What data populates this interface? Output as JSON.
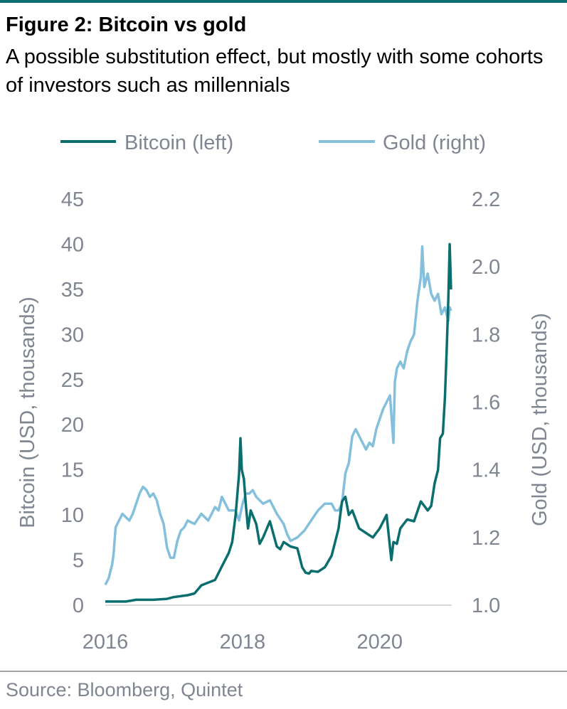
{
  "header": {
    "title": "Figure 2: Bitcoin vs gold",
    "subtitle": "A possible substitution effect, but mostly with some cohorts of investors such as millennials"
  },
  "footer": {
    "source": "Source: Bloomberg, Quintet"
  },
  "colors": {
    "bitcoin": "#0b6e6e",
    "gold": "#84bfdc",
    "axis_text": "#7f8691",
    "rule": "#0b6e6e",
    "baseline": "#d9d9d9"
  },
  "chart_data": {
    "type": "line",
    "legend": "top",
    "grid": false,
    "xlim": [
      2016.0,
      2021.05
    ],
    "x_ticks": [
      2016,
      2018,
      2020
    ],
    "x_tick_labels": [
      "2016",
      "2018",
      "2020"
    ],
    "y_left": {
      "label": "Bitcoin (USD, thousands)",
      "lim": [
        0,
        45
      ],
      "ticks": [
        0,
        5,
        10,
        15,
        20,
        25,
        30,
        35,
        40,
        45
      ],
      "tick_labels": [
        "0",
        "5",
        "10",
        "15",
        "20",
        "25",
        "30",
        "35",
        "40",
        "45"
      ]
    },
    "y_right": {
      "label": "Gold (USD, thousands)",
      "lim": [
        1.0,
        2.2
      ],
      "ticks": [
        1.0,
        1.2,
        1.4,
        1.6,
        1.8,
        2.0,
        2.2
      ],
      "tick_labels": [
        "1.0",
        "1.2",
        "1.4",
        "1.6",
        "1.8",
        "2.0",
        "2.2"
      ]
    },
    "series": [
      {
        "name": "Bitcoin (left)",
        "axis": "left",
        "x": [
          2016.0,
          2016.3,
          2016.45,
          2016.55,
          2016.7,
          2016.9,
          2017.0,
          2017.1,
          2017.2,
          2017.3,
          2017.4,
          2017.5,
          2017.6,
          2017.7,
          2017.8,
          2017.85,
          2017.9,
          2017.95,
          2017.97,
          2017.99,
          2018.02,
          2018.05,
          2018.08,
          2018.12,
          2018.2,
          2018.25,
          2018.3,
          2018.4,
          2018.5,
          2018.55,
          2018.6,
          2018.7,
          2018.8,
          2018.87,
          2018.92,
          2018.97,
          2019.0,
          2019.1,
          2019.2,
          2019.3,
          2019.4,
          2019.45,
          2019.5,
          2019.55,
          2019.6,
          2019.7,
          2019.8,
          2019.9,
          2020.0,
          2020.1,
          2020.17,
          2020.2,
          2020.25,
          2020.3,
          2020.4,
          2020.5,
          2020.6,
          2020.65,
          2020.7,
          2020.75,
          2020.8,
          2020.85,
          2020.88,
          2020.92,
          2020.95,
          2020.98,
          2021.0,
          2021.02,
          2021.04
        ],
        "values": [
          0.4,
          0.4,
          0.6,
          0.6,
          0.6,
          0.7,
          0.9,
          1.0,
          1.1,
          1.3,
          2.2,
          2.5,
          2.8,
          4.3,
          5.8,
          7.0,
          10.0,
          14.5,
          18.5,
          15.0,
          14.0,
          11.0,
          8.5,
          10.5,
          9.0,
          6.8,
          7.5,
          9.3,
          6.5,
          6.2,
          7.0,
          6.5,
          6.3,
          4.2,
          3.6,
          3.5,
          3.8,
          3.7,
          4.2,
          5.5,
          8.5,
          11.5,
          12.0,
          10.0,
          10.5,
          8.5,
          8.0,
          7.5,
          8.5,
          10.0,
          5.0,
          7.0,
          6.8,
          8.5,
          9.5,
          9.3,
          11.5,
          11.0,
          10.5,
          11.0,
          13.5,
          15.0,
          18.5,
          19.0,
          23.0,
          29.0,
          34.0,
          40.0,
          35.0
        ]
      },
      {
        "name": "Gold (right)",
        "axis": "right",
        "x": [
          2016.0,
          2016.05,
          2016.1,
          2016.12,
          2016.15,
          2016.2,
          2016.25,
          2016.3,
          2016.35,
          2016.4,
          2016.45,
          2016.5,
          2016.55,
          2016.6,
          2016.65,
          2016.7,
          2016.75,
          2016.8,
          2016.85,
          2016.9,
          2016.95,
          2017.0,
          2017.05,
          2017.1,
          2017.15,
          2017.2,
          2017.3,
          2017.4,
          2017.5,
          2017.6,
          2017.65,
          2017.7,
          2017.8,
          2017.9,
          2017.95,
          2018.0,
          2018.05,
          2018.1,
          2018.15,
          2018.2,
          2018.3,
          2018.4,
          2018.5,
          2018.6,
          2018.65,
          2018.7,
          2018.8,
          2018.9,
          2019.0,
          2019.1,
          2019.2,
          2019.3,
          2019.35,
          2019.4,
          2019.45,
          2019.5,
          2019.55,
          2019.6,
          2019.65,
          2019.7,
          2019.75,
          2019.8,
          2019.85,
          2019.9,
          2019.95,
          2020.0,
          2020.05,
          2020.1,
          2020.15,
          2020.2,
          2020.22,
          2020.25,
          2020.3,
          2020.35,
          2020.4,
          2020.45,
          2020.5,
          2020.55,
          2020.6,
          2020.62,
          2020.65,
          2020.7,
          2020.75,
          2020.8,
          2020.85,
          2020.9,
          2020.95,
          2021.0,
          2021.02,
          2021.04
        ],
        "values": [
          1.06,
          1.08,
          1.12,
          1.15,
          1.23,
          1.25,
          1.27,
          1.26,
          1.25,
          1.27,
          1.3,
          1.33,
          1.35,
          1.34,
          1.32,
          1.33,
          1.31,
          1.27,
          1.24,
          1.17,
          1.14,
          1.14,
          1.19,
          1.22,
          1.23,
          1.25,
          1.24,
          1.27,
          1.25,
          1.29,
          1.28,
          1.32,
          1.28,
          1.28,
          1.25,
          1.3,
          1.33,
          1.33,
          1.34,
          1.32,
          1.3,
          1.31,
          1.27,
          1.24,
          1.21,
          1.19,
          1.2,
          1.22,
          1.25,
          1.28,
          1.3,
          1.3,
          1.28,
          1.28,
          1.3,
          1.39,
          1.42,
          1.5,
          1.52,
          1.5,
          1.48,
          1.46,
          1.48,
          1.47,
          1.52,
          1.55,
          1.58,
          1.6,
          1.62,
          1.48,
          1.66,
          1.7,
          1.72,
          1.7,
          1.75,
          1.78,
          1.8,
          1.9,
          1.97,
          2.06,
          1.94,
          1.98,
          1.92,
          1.9,
          1.92,
          1.86,
          1.88,
          1.84,
          1.88,
          1.87
        ]
      }
    ]
  }
}
